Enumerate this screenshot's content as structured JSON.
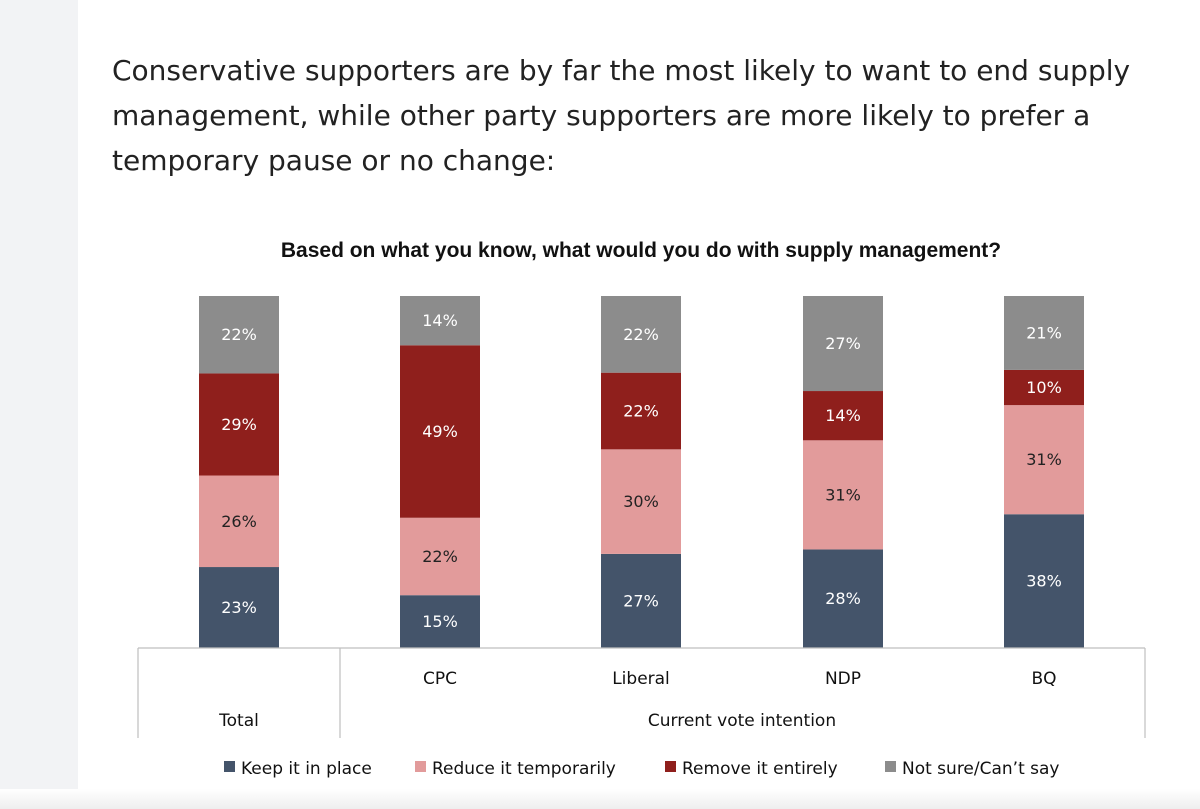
{
  "intro_text": "Conservative supporters are by far the most likely to want to end supply management, while other party supporters are more likely to prefer a temporary pause or no change:",
  "chart_data": {
    "type": "bar",
    "stacked": true,
    "title": "Based on what you know, what would you do with supply management?",
    "categories": [
      "",
      "CPC",
      "Liberal",
      "NDP",
      "BQ"
    ],
    "groups": [
      {
        "label": "Total",
        "categories": [
          ""
        ]
      },
      {
        "label": "Current vote intention",
        "categories": [
          "CPC",
          "Liberal",
          "NDP",
          "BQ"
        ]
      }
    ],
    "series": [
      {
        "name": "Keep it in place",
        "color": "#44546a",
        "values": [
          23,
          15,
          27,
          28,
          38
        ]
      },
      {
        "name": "Reduce it temporarily",
        "color": "#e29b9b",
        "values": [
          26,
          22,
          30,
          31,
          31
        ]
      },
      {
        "name": "Remove it entirely",
        "color": "#8f1f1c",
        "values": [
          29,
          49,
          22,
          14,
          10
        ]
      },
      {
        "name": "Not sure/Can’t say",
        "color": "#8c8c8c",
        "values": [
          22,
          14,
          22,
          27,
          21
        ]
      }
    ],
    "value_suffix": "%",
    "legend_position": "bottom",
    "grid": false
  }
}
